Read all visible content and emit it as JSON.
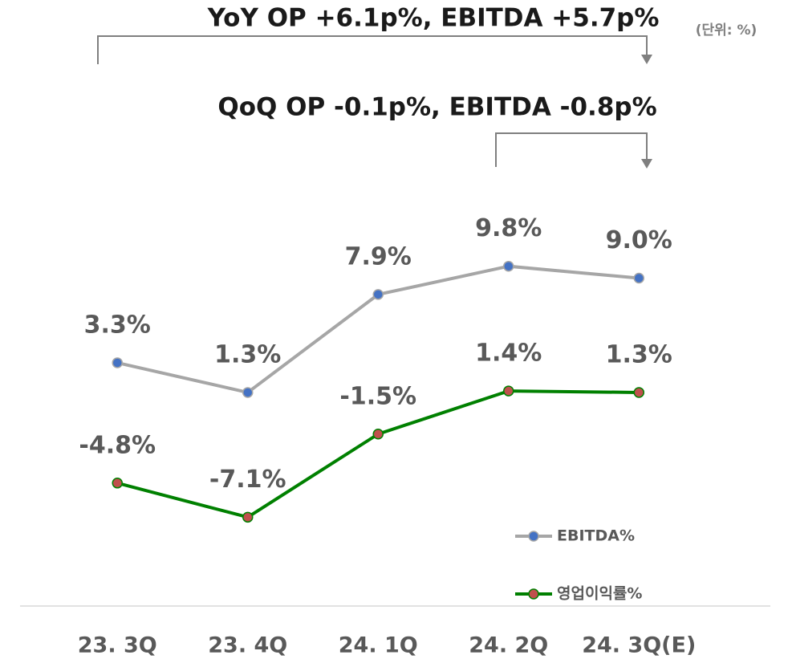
{
  "chart_data": {
    "type": "line",
    "annotations": [
      "YoY OP +6.1p%, EBITDA +5.7p%",
      "QoQ OP -0.1p%, EBITDA -0.8p%"
    ],
    "unit": "(단위: %)",
    "categories": [
      "23. 3Q",
      "23. 4Q",
      "24. 1Q",
      "24. 2Q",
      "24. 3Q(E)"
    ],
    "series": [
      {
        "name": "EBITDA%",
        "color": "#a6a6a6",
        "marker_color": "#4472c4",
        "values": [
          3.3,
          1.3,
          7.9,
          9.8,
          9.0
        ],
        "value_labels": [
          "3.3%",
          "1.3%",
          "7.9%",
          "9.8%",
          "9.0%"
        ]
      },
      {
        "name": "영업이익률%",
        "color": "#008000",
        "marker_color": "#c0504d",
        "values": [
          -4.8,
          -7.1,
          -1.5,
          1.4,
          1.3
        ],
        "value_labels": [
          "-4.8%",
          "-7.1%",
          "-1.5%",
          "1.4%",
          "1.3%"
        ]
      }
    ],
    "ylim": [
      -13,
      15
    ],
    "legend": "lower right",
    "grid": false
  }
}
